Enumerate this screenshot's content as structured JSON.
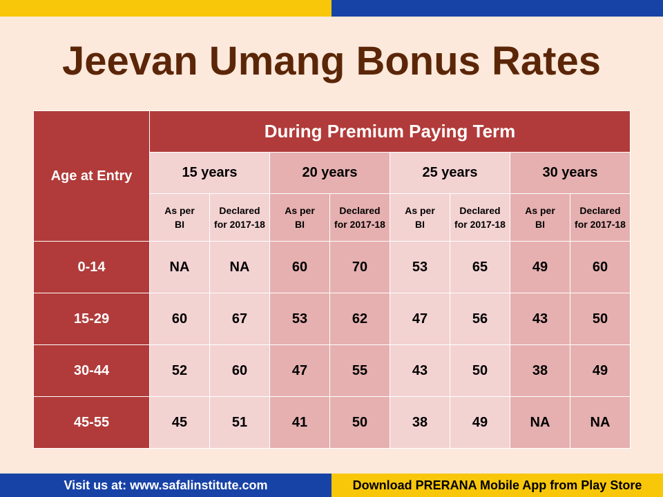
{
  "title": "Jeevan Umang Bonus Rates",
  "table": {
    "age_header": "Age at Entry",
    "term_header": "During Premium Paying Term",
    "years": [
      "15 years",
      "20 years",
      "25 years",
      "30 years"
    ],
    "sub_headers": {
      "as_per_bi": "As per BI",
      "declared": "Declared for 2017-18"
    },
    "rows": [
      {
        "age": "0-14",
        "values": [
          "NA",
          "NA",
          "60",
          "70",
          "53",
          "65",
          "49",
          "60"
        ]
      },
      {
        "age": "15-29",
        "values": [
          "60",
          "67",
          "53",
          "62",
          "47",
          "56",
          "43",
          "50"
        ]
      },
      {
        "age": "30-44",
        "values": [
          "52",
          "60",
          "47",
          "55",
          "43",
          "50",
          "38",
          "49"
        ]
      },
      {
        "age": "45-55",
        "values": [
          "45",
          "51",
          "41",
          "50",
          "38",
          "49",
          "NA",
          "NA"
        ]
      }
    ]
  },
  "footer": {
    "left": "Visit us at: www.safalinstitute.com",
    "right": "Download  PRERANA Mobile App from Play Store"
  },
  "colors": {
    "header_red": "#b13b3a",
    "light_pink": "#f3d2d2",
    "dark_pink": "#e6b0b0",
    "title_brown": "#5b2608",
    "yellow": "#f8c70a",
    "blue": "#1742a6",
    "background": "#fce9db"
  }
}
